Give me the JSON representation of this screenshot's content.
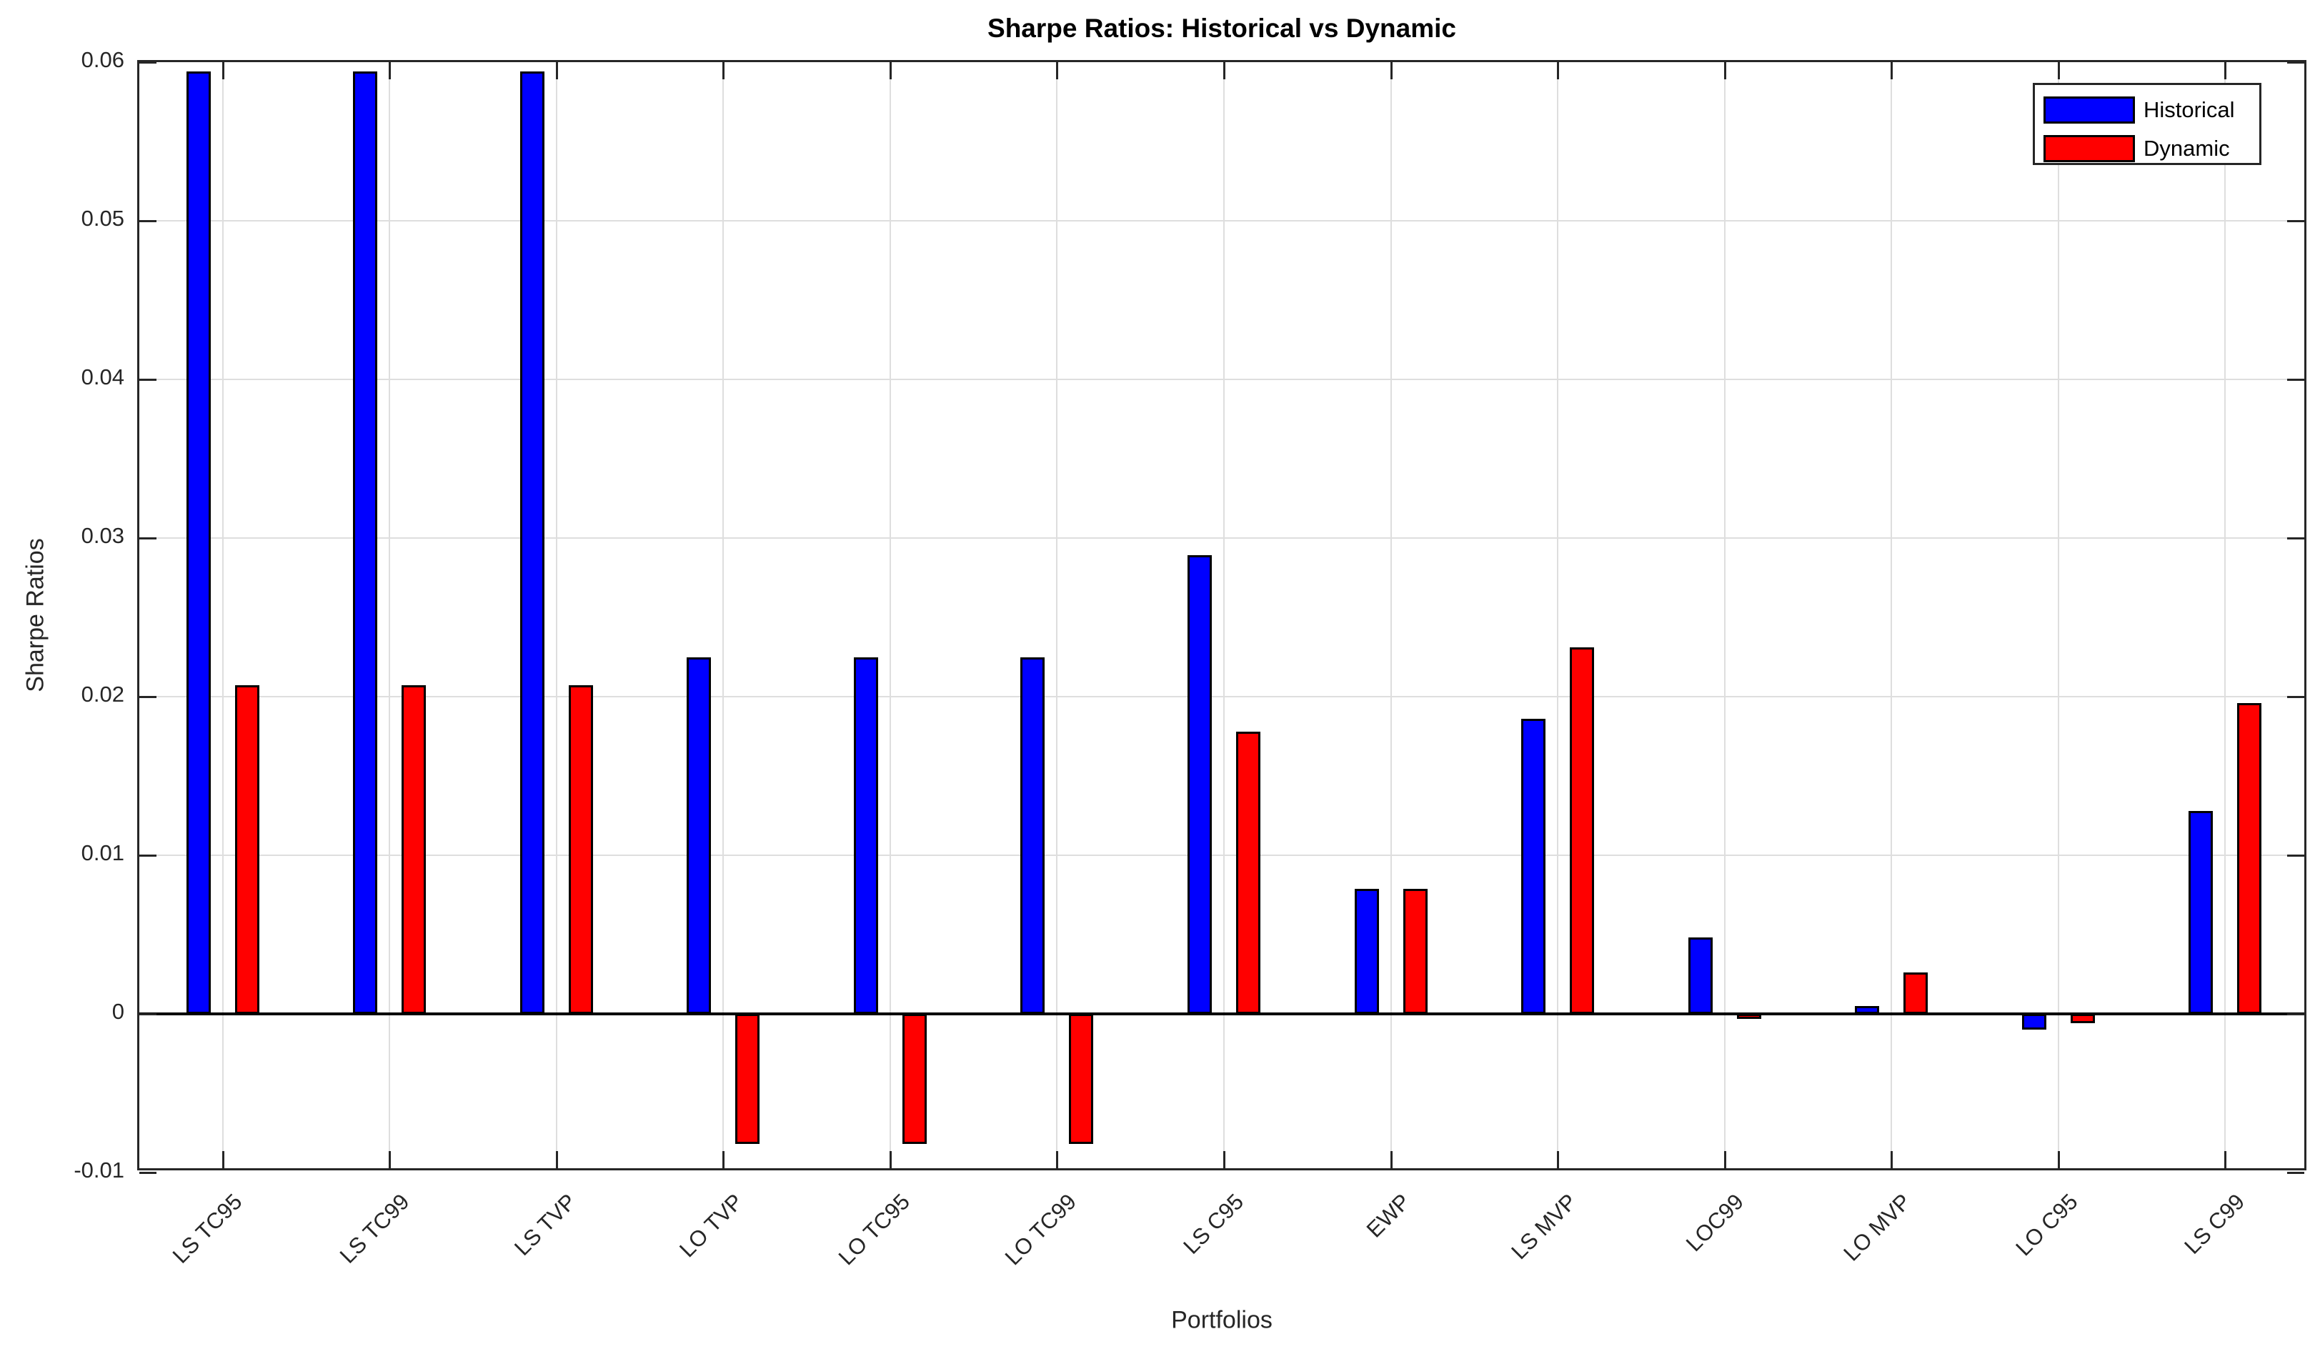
{
  "chart_data": {
    "type": "bar",
    "title": "Sharpe Ratios: Historical vs Dynamic",
    "xlabel": "Portfolios",
    "ylabel": "Sharpe Ratios",
    "categories": [
      "LS TC95",
      "LS TC99",
      "LS TVP",
      "LO TVP",
      "LO TC95",
      "LO TC99",
      "LS C95",
      "EWP",
      "LS MVP",
      "LOC99",
      "LO MVP",
      "LO C95",
      "LS C99"
    ],
    "series": [
      {
        "name": "Historical",
        "color": "#0000FF",
        "values": [
          0.0594,
          0.0594,
          0.0594,
          0.0225,
          0.0225,
          0.0225,
          0.0289,
          0.0079,
          0.0186,
          0.0048,
          0.0005,
          -0.001,
          0.0128
        ]
      },
      {
        "name": "Dynamic",
        "color": "#FF0000",
        "values": [
          0.0207,
          0.0207,
          0.0207,
          -0.0082,
          -0.0082,
          -0.0082,
          0.0178,
          0.0079,
          0.0231,
          -0.0002,
          0.0026,
          -0.0006,
          0.0196
        ]
      }
    ],
    "ylim": [
      -0.01,
      0.06
    ],
    "yticks": [
      {
        "value": -0.01,
        "label": "-0.01"
      },
      {
        "value": 0,
        "label": "0"
      },
      {
        "value": 0.01,
        "label": "0.01"
      },
      {
        "value": 0.02,
        "label": "0.02"
      },
      {
        "value": 0.03,
        "label": "0.03"
      },
      {
        "value": 0.04,
        "label": "0.04"
      },
      {
        "value": 0.05,
        "label": "0.05"
      },
      {
        "value": 0.06,
        "label": "0.06"
      }
    ],
    "grid": true,
    "legend": {
      "position": "top-right",
      "entries": [
        "Historical",
        "Dynamic"
      ]
    },
    "colors": {
      "grid": "#DEDEDE",
      "axis": "#262626",
      "baseline": "#000000",
      "bar_edge": "#000000",
      "tick_text": "#262626",
      "title_text": "#000000",
      "background": "#FFFFFF"
    }
  }
}
